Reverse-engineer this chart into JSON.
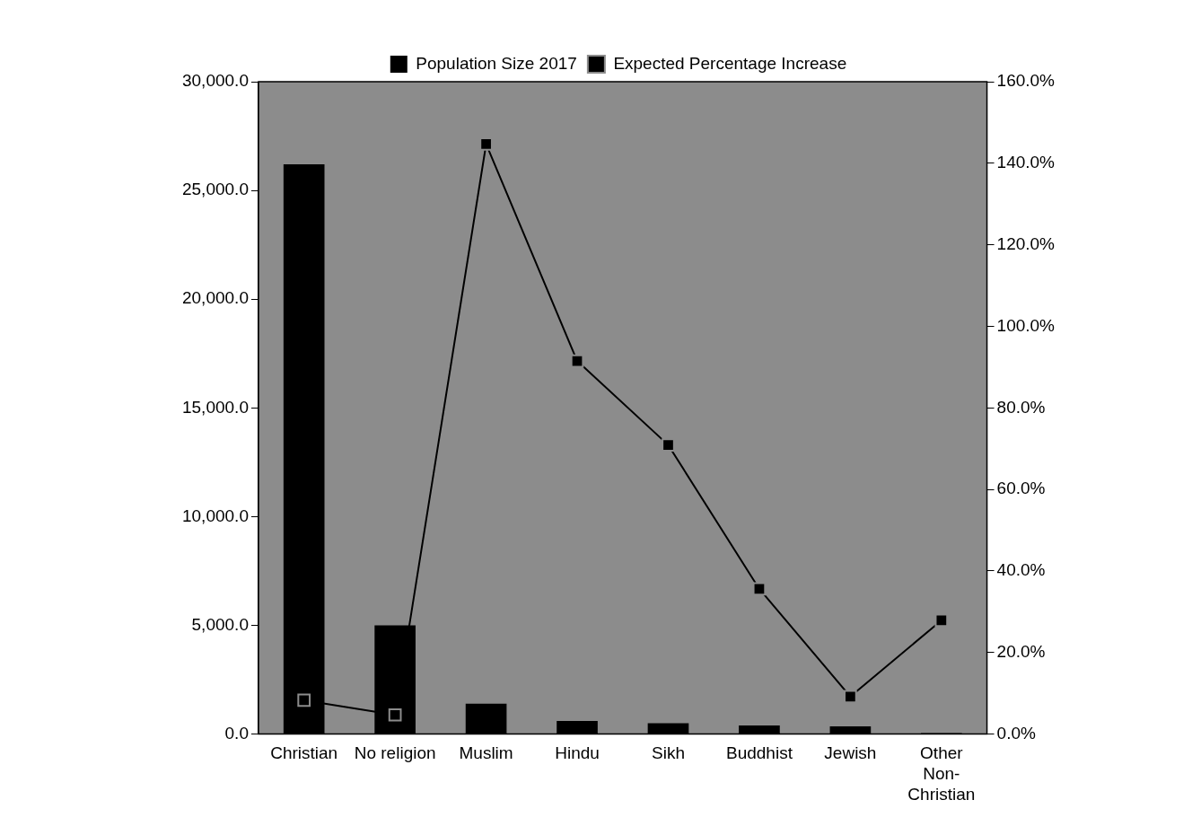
{
  "chart_data": {
    "type": "bar",
    "categories": [
      "Christian",
      "No religion",
      "Muslim",
      "Hindu",
      "Sikh",
      "Buddhist",
      "Jewish",
      "Other Non-Christian"
    ],
    "series": [
      {
        "name": "Population Size 2017",
        "type": "bar",
        "color": "#000000",
        "values": [
          26200,
          5000,
          1400,
          600,
          500,
          400,
          350,
          50
        ]
      },
      {
        "name": "Expected Percentage Increase",
        "type": "line",
        "axis": "y2",
        "color": "#000000",
        "marker": "square",
        "values": [
          8.3,
          4.7,
          144.7,
          91.5,
          70.9,
          35.6,
          9.2,
          27.9
        ]
      }
    ],
    "ylim": [
      0,
      30000
    ],
    "yticks": [
      {
        "value": 0,
        "label": "0.0"
      },
      {
        "value": 5000,
        "label": "5,000.0"
      },
      {
        "value": 10000,
        "label": "10,000.0"
      },
      {
        "value": 15000,
        "label": "15,000.0"
      },
      {
        "value": 20000,
        "label": "20,000.0"
      },
      {
        "value": 25000,
        "label": "25,000.0"
      },
      {
        "value": 30000,
        "label": "30,000.0"
      }
    ],
    "y2lim": [
      0,
      160
    ],
    "y2ticks": [
      {
        "value": 0,
        "label": "0.0%"
      },
      {
        "value": 20,
        "label": "20.0%"
      },
      {
        "value": 40,
        "label": "40.0%"
      },
      {
        "value": 60,
        "label": "60.0%"
      },
      {
        "value": 80,
        "label": "80.0%"
      },
      {
        "value": 100,
        "label": "100.0%"
      },
      {
        "value": 120,
        "label": "120.0%"
      },
      {
        "value": 140,
        "label": "140.0%"
      },
      {
        "value": 160,
        "label": "160.0%"
      }
    ],
    "legend": "top",
    "grid": false
  }
}
